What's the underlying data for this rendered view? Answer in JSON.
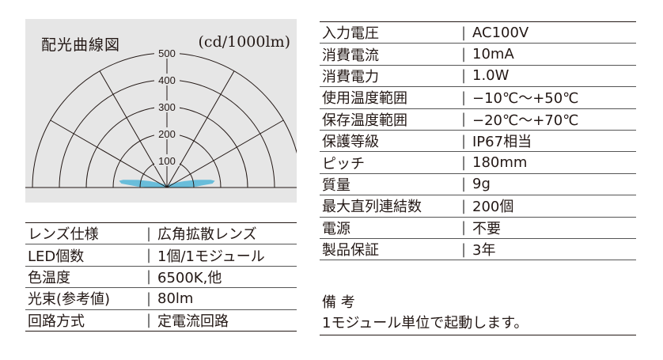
{
  "polar": {
    "title": "配光曲線図",
    "unit": "(cd/1000lm)",
    "rings": [
      "500",
      "400",
      "300",
      "200",
      "100"
    ]
  },
  "chart_data": {
    "type": "polar",
    "title": "配光曲線図",
    "unit": "(cd/1000lm)",
    "r_ticks": [
      100,
      200,
      300,
      400,
      500
    ],
    "rlim": [
      0,
      500
    ],
    "angle_step_deg": 30,
    "series": [
      {
        "angles_deg": [
          0,
          15,
          30,
          45,
          60,
          70,
          75,
          80,
          82,
          85,
          88,
          90
        ],
        "values": [
          8,
          9,
          12,
          18,
          35,
          70,
          110,
          165,
          180,
          170,
          110,
          60
        ],
        "color": "#5bb8d8"
      }
    ]
  },
  "left_table": [
    {
      "key": "レンズ仕様",
      "sep": "|",
      "value": "広角拡散レンズ"
    },
    {
      "key": "LED個数",
      "sep": "|",
      "value": "1個/1モジュール"
    },
    {
      "key": "色温度",
      "sep": "|",
      "value": "6500K,他"
    },
    {
      "key": "光束(参考値)",
      "sep": "|",
      "value": "80lm"
    },
    {
      "key": "回路方式",
      "sep": "|",
      "value": "定電流回路"
    }
  ],
  "right_table": [
    {
      "key": "入力電圧",
      "sep": "|",
      "value": "AC100V"
    },
    {
      "key": "消費電流",
      "sep": "|",
      "value": "10mA"
    },
    {
      "key": "消費電力",
      "sep": "|",
      "value": "1.0W"
    },
    {
      "key": "使用温度範囲",
      "sep": "|",
      "value": "−10℃〜+50℃"
    },
    {
      "key": "保存温度範囲",
      "sep": "|",
      "value": "−20℃〜+70℃"
    },
    {
      "key": "保護等級",
      "sep": "|",
      "value": "IP67相当"
    },
    {
      "key": "ピッチ",
      "sep": "|",
      "value": "180mm"
    },
    {
      "key": "質量",
      "sep": "|",
      "value": "9g"
    },
    {
      "key": "最大直列連結数",
      "sep": "|",
      "value": "200個"
    },
    {
      "key": "電源",
      "sep": "|",
      "value": "不要"
    },
    {
      "key": "製品保証",
      "sep": "|",
      "value": "3年"
    }
  ],
  "remarks": {
    "label": "備 考",
    "text": "1モジュール単位で起動します。"
  }
}
